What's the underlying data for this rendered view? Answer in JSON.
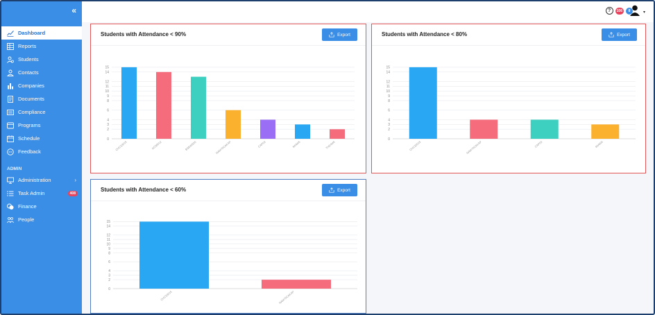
{
  "sidebar": {
    "items": [
      {
        "label": "Dashboard",
        "icon": "chart-line-icon",
        "active": true
      },
      {
        "label": "Reports",
        "icon": "table-icon"
      },
      {
        "label": "Students",
        "icon": "student-icon"
      },
      {
        "label": "Contacts",
        "icon": "contacts-icon"
      },
      {
        "label": "Companies",
        "icon": "building-icon"
      },
      {
        "label": "Documents",
        "icon": "document-icon"
      },
      {
        "label": "Compliance",
        "icon": "compliance-icon"
      },
      {
        "label": "Programs",
        "icon": "programs-icon"
      },
      {
        "label": "Schedule",
        "icon": "calendar-icon"
      },
      {
        "label": "Feedback",
        "icon": "feedback-icon"
      }
    ],
    "admin_title": "ADMIN",
    "admin_items": [
      {
        "label": "Administration",
        "icon": "monitor-icon"
      },
      {
        "label": "Task Admin",
        "icon": "list-icon",
        "badge": "408"
      },
      {
        "label": "Finance",
        "icon": "coins-icon"
      },
      {
        "label": "People",
        "icon": "people-icon"
      }
    ]
  },
  "header": {
    "help": "?",
    "badge1": "106",
    "badge2": "8",
    "badge1_color": "#e8445d",
    "badge2_color": "#3b8ee6"
  },
  "cards": [
    {
      "title": "Students with Attendance < 90%",
      "export_label": "Export"
    },
    {
      "title": "Students with Attendance < 80%",
      "export_label": "Export"
    },
    {
      "title": "Students with Attendance < 60%",
      "export_label": "Export"
    }
  ],
  "chart_data": [
    {
      "type": "bar",
      "title": "Students with Attendance < 90%",
      "categories": [
        "CHC33015",
        "AC08012",
        "BSB40520",
        "NAM70CAKAP",
        "CAP03",
        "IMAW6",
        "THE4M6"
      ],
      "values": [
        15,
        14,
        13,
        6,
        4,
        3,
        2
      ],
      "colors": [
        "#2aa7f2",
        "#f56c7d",
        "#3dcfc0",
        "#fbb02e",
        "#9a6ff5",
        "#2aa7f2",
        "#f56c7d"
      ],
      "ylim": [
        0,
        16
      ],
      "yticks": [
        0,
        2,
        3,
        4,
        6,
        8,
        9,
        10,
        11,
        12,
        14,
        15
      ],
      "grid": true,
      "legend": "none"
    },
    {
      "type": "bar",
      "title": "Students with Attendance < 80%",
      "categories": [
        "CHC33015",
        "NAM70CAKAP",
        "CAP03",
        "IMAW6"
      ],
      "values": [
        15,
        4,
        4,
        3
      ],
      "colors": [
        "#2aa7f2",
        "#f56c7d",
        "#3dcfc0",
        "#fbb02e"
      ],
      "ylim": [
        0,
        16
      ],
      "yticks": [
        0,
        2,
        3,
        4,
        6,
        8,
        9,
        10,
        11,
        12,
        14,
        15
      ],
      "grid": true,
      "legend": "none"
    },
    {
      "type": "bar",
      "title": "Students with Attendance < 60%",
      "categories": [
        "CHC33015",
        "NAM70CAKAP"
      ],
      "values": [
        15,
        2
      ],
      "colors": [
        "#2aa7f2",
        "#f56c7d"
      ],
      "ylim": [
        0,
        16
      ],
      "yticks": [
        0,
        2,
        3,
        4,
        6,
        8,
        9,
        10,
        11,
        12,
        14,
        15
      ],
      "grid": true,
      "legend": "none"
    }
  ]
}
